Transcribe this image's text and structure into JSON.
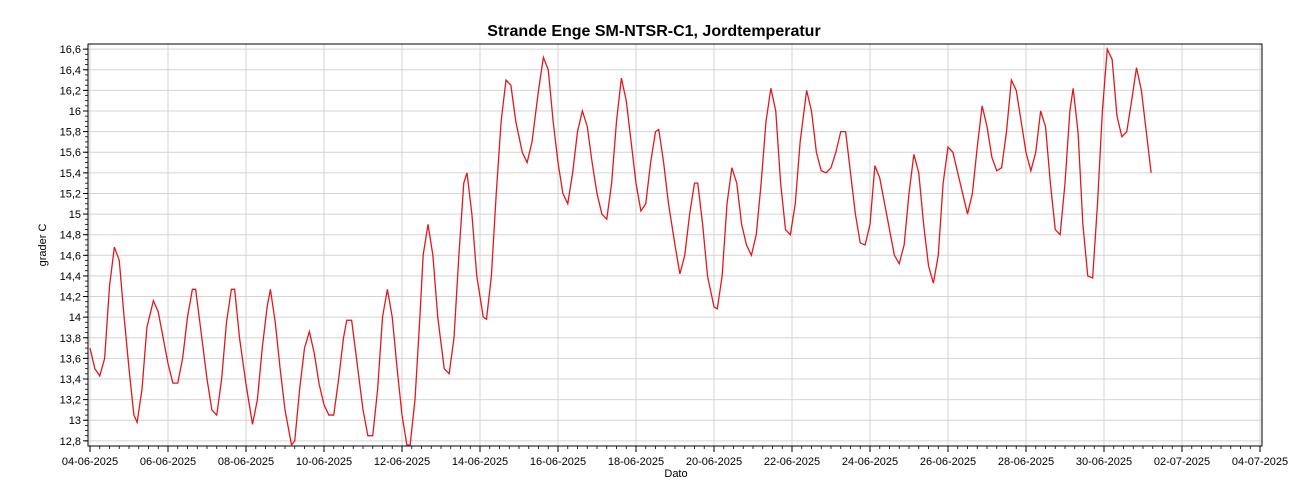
{
  "chart_data": {
    "type": "line",
    "title": "Strande Enge SM-NTSR-C1, Jordtemperatur",
    "xlabel": "Dato",
    "ylabel": "grader C",
    "x_tick_labels": [
      "04-06-2025",
      "06-06-2025",
      "08-06-2025",
      "10-06-2025",
      "12-06-2025",
      "14-06-2025",
      "16-06-2025",
      "18-06-2025",
      "20-06-2025",
      "22-06-2025",
      "24-06-2025",
      "26-06-2025",
      "28-06-2025",
      "30-06-2025",
      "02-07-2025",
      "04-07-2025"
    ],
    "y_tick_labels": [
      "12,8",
      "13",
      "13,2",
      "13,4",
      "13,6",
      "13,8",
      "14",
      "14,2",
      "14,4",
      "14,6",
      "14,8",
      "15",
      "15,2",
      "15,4",
      "15,6",
      "15,8",
      "16",
      "16,2",
      "16,4",
      "16,6"
    ],
    "xlim": [
      "2025-06-04",
      "2025-07-04"
    ],
    "ylim": [
      12.75,
      16.65
    ],
    "grid": true,
    "line_color": "#e0191e",
    "series": [
      {
        "points": [
          [
            "2025-06-04 00:00",
            13.7
          ],
          [
            "2025-06-04 03:00",
            13.5
          ],
          [
            "2025-06-04 06:00",
            13.43
          ],
          [
            "2025-06-04 09:00",
            13.6
          ],
          [
            "2025-06-04 12:00",
            14.3
          ],
          [
            "2025-06-04 15:00",
            14.68
          ],
          [
            "2025-06-04 18:00",
            14.55
          ],
          [
            "2025-06-04 21:00",
            14.0
          ],
          [
            "2025-06-05 00:00",
            13.5
          ],
          [
            "2025-06-05 03:00",
            13.05
          ],
          [
            "2025-06-05 05:00",
            12.98
          ],
          [
            "2025-06-05 08:00",
            13.3
          ],
          [
            "2025-06-05 11:00",
            13.9
          ],
          [
            "2025-06-05 15:00",
            14.16
          ],
          [
            "2025-06-05 18:00",
            14.05
          ],
          [
            "2025-06-05 21:00",
            13.8
          ],
          [
            "2025-06-06 00:00",
            13.55
          ],
          [
            "2025-06-06 03:00",
            13.36
          ],
          [
            "2025-06-06 06:00",
            13.36
          ],
          [
            "2025-06-06 09:00",
            13.6
          ],
          [
            "2025-06-06 12:00",
            14.0
          ],
          [
            "2025-06-06 15:00",
            14.27
          ],
          [
            "2025-06-06 17:00",
            14.27
          ],
          [
            "2025-06-06 20:00",
            13.9
          ],
          [
            "2025-06-07 00:00",
            13.4
          ],
          [
            "2025-06-07 03:00",
            13.1
          ],
          [
            "2025-06-07 06:00",
            13.05
          ],
          [
            "2025-06-07 09:00",
            13.4
          ],
          [
            "2025-06-07 12:00",
            13.95
          ],
          [
            "2025-06-07 15:00",
            14.27
          ],
          [
            "2025-06-07 17:00",
            14.27
          ],
          [
            "2025-06-07 20:00",
            13.8
          ],
          [
            "2025-06-08 00:00",
            13.35
          ],
          [
            "2025-06-08 04:00",
            12.96
          ],
          [
            "2025-06-08 07:00",
            13.2
          ],
          [
            "2025-06-08 10:00",
            13.7
          ],
          [
            "2025-06-08 13:00",
            14.1
          ],
          [
            "2025-06-08 15:00",
            14.27
          ],
          [
            "2025-06-08 18:00",
            13.95
          ],
          [
            "2025-06-08 21:00",
            13.5
          ],
          [
            "2025-06-09 00:00",
            13.1
          ],
          [
            "2025-06-09 04:00",
            12.76
          ],
          [
            "2025-06-09 06:00",
            12.8
          ],
          [
            "2025-06-09 09:00",
            13.3
          ],
          [
            "2025-06-09 12:00",
            13.7
          ],
          [
            "2025-06-09 15:00",
            13.86
          ],
          [
            "2025-06-09 18:00",
            13.65
          ],
          [
            "2025-06-09 21:00",
            13.35
          ],
          [
            "2025-06-10 00:00",
            13.15
          ],
          [
            "2025-06-10 03:00",
            13.05
          ],
          [
            "2025-06-10 06:00",
            13.05
          ],
          [
            "2025-06-10 09:00",
            13.4
          ],
          [
            "2025-06-10 12:00",
            13.8
          ],
          [
            "2025-06-10 14:00",
            13.97
          ],
          [
            "2025-06-10 17:00",
            13.97
          ],
          [
            "2025-06-10 20:00",
            13.6
          ],
          [
            "2025-06-11 00:00",
            13.1
          ],
          [
            "2025-06-11 03:00",
            12.85
          ],
          [
            "2025-06-11 06:00",
            12.85
          ],
          [
            "2025-06-11 09:00",
            13.3
          ],
          [
            "2025-06-11 12:00",
            14.0
          ],
          [
            "2025-06-11 15:00",
            14.27
          ],
          [
            "2025-06-11 18:00",
            14.0
          ],
          [
            "2025-06-11 21:00",
            13.5
          ],
          [
            "2025-06-12 00:00",
            13.05
          ],
          [
            "2025-06-12 03:00",
            12.76
          ],
          [
            "2025-06-12 05:00",
            12.76
          ],
          [
            "2025-06-12 08:00",
            13.2
          ],
          [
            "2025-06-12 11:00",
            14.0
          ],
          [
            "2025-06-12 13:00",
            14.6
          ],
          [
            "2025-06-12 16:00",
            14.9
          ],
          [
            "2025-06-12 19:00",
            14.6
          ],
          [
            "2025-06-12 22:00",
            14.0
          ],
          [
            "2025-06-13 02:00",
            13.5
          ],
          [
            "2025-06-13 05:00",
            13.45
          ],
          [
            "2025-06-13 08:00",
            13.8
          ],
          [
            "2025-06-13 11:00",
            14.6
          ],
          [
            "2025-06-13 14:00",
            15.3
          ],
          [
            "2025-06-13 16:00",
            15.4
          ],
          [
            "2025-06-13 19:00",
            15.0
          ],
          [
            "2025-06-13 22:00",
            14.4
          ],
          [
            "2025-06-14 02:00",
            14.0
          ],
          [
            "2025-06-14 04:00",
            13.98
          ],
          [
            "2025-06-14 07:00",
            14.4
          ],
          [
            "2025-06-14 10:00",
            15.2
          ],
          [
            "2025-06-14 13:00",
            15.9
          ],
          [
            "2025-06-14 16:00",
            16.3
          ],
          [
            "2025-06-14 19:00",
            16.25
          ],
          [
            "2025-06-14 22:00",
            15.9
          ],
          [
            "2025-06-15 02:00",
            15.6
          ],
          [
            "2025-06-15 05:00",
            15.5
          ],
          [
            "2025-06-15 08:00",
            15.7
          ],
          [
            "2025-06-15 12:00",
            16.2
          ],
          [
            "2025-06-15 15:00",
            16.52
          ],
          [
            "2025-06-15 18:00",
            16.4
          ],
          [
            "2025-06-15 21:00",
            15.9
          ],
          [
            "2025-06-16 00:00",
            15.5
          ],
          [
            "2025-06-16 03:00",
            15.2
          ],
          [
            "2025-06-16 06:00",
            15.1
          ],
          [
            "2025-06-16 09:00",
            15.4
          ],
          [
            "2025-06-16 12:00",
            15.8
          ],
          [
            "2025-06-16 15:00",
            16.0
          ],
          [
            "2025-06-16 18:00",
            15.85
          ],
          [
            "2025-06-16 21:00",
            15.5
          ],
          [
            "2025-06-17 00:00",
            15.2
          ],
          [
            "2025-06-17 03:00",
            15.0
          ],
          [
            "2025-06-17 06:00",
            14.95
          ],
          [
            "2025-06-17 09:00",
            15.3
          ],
          [
            "2025-06-17 12:00",
            15.9
          ],
          [
            "2025-06-17 15:00",
            16.32
          ],
          [
            "2025-06-17 18:00",
            16.1
          ],
          [
            "2025-06-17 21:00",
            15.7
          ],
          [
            "2025-06-18 00:00",
            15.3
          ],
          [
            "2025-06-18 03:00",
            15.03
          ],
          [
            "2025-06-18 06:00",
            15.1
          ],
          [
            "2025-06-18 09:00",
            15.5
          ],
          [
            "2025-06-18 12:00",
            15.8
          ],
          [
            "2025-06-18 14:00",
            15.82
          ],
          [
            "2025-06-18 17:00",
            15.5
          ],
          [
            "2025-06-18 20:00",
            15.1
          ],
          [
            "2025-06-19 00:00",
            14.7
          ],
          [
            "2025-06-19 03:00",
            14.42
          ],
          [
            "2025-06-19 06:00",
            14.6
          ],
          [
            "2025-06-19 09:00",
            15.0
          ],
          [
            "2025-06-19 12:00",
            15.3
          ],
          [
            "2025-06-19 14:00",
            15.3
          ],
          [
            "2025-06-19 17:00",
            14.9
          ],
          [
            "2025-06-19 20:00",
            14.4
          ],
          [
            "2025-06-20 00:00",
            14.1
          ],
          [
            "2025-06-20 02:00",
            14.08
          ],
          [
            "2025-06-20 05:00",
            14.4
          ],
          [
            "2025-06-20 08:00",
            15.1
          ],
          [
            "2025-06-20 11:00",
            15.45
          ],
          [
            "2025-06-20 14:00",
            15.3
          ],
          [
            "2025-06-20 17:00",
            14.9
          ],
          [
            "2025-06-20 20:00",
            14.7
          ],
          [
            "2025-06-20 23:00",
            14.6
          ],
          [
            "2025-06-21 02:00",
            14.8
          ],
          [
            "2025-06-21 05:00",
            15.3
          ],
          [
            "2025-06-21 08:00",
            15.9
          ],
          [
            "2025-06-21 11:00",
            16.22
          ],
          [
            "2025-06-21 14:00",
            16.0
          ],
          [
            "2025-06-21 17:00",
            15.3
          ],
          [
            "2025-06-21 20:00",
            14.85
          ],
          [
            "2025-06-21 23:00",
            14.8
          ],
          [
            "2025-06-22 02:00",
            15.1
          ],
          [
            "2025-06-22 05:00",
            15.7
          ],
          [
            "2025-06-22 09:00",
            16.2
          ],
          [
            "2025-06-22 12:00",
            16.0
          ],
          [
            "2025-06-22 15:00",
            15.6
          ],
          [
            "2025-06-22 18:00",
            15.42
          ],
          [
            "2025-06-22 21:00",
            15.4
          ],
          [
            "2025-06-23 00:00",
            15.45
          ],
          [
            "2025-06-23 03:00",
            15.6
          ],
          [
            "2025-06-23 06:00",
            15.8
          ],
          [
            "2025-06-23 09:00",
            15.8
          ],
          [
            "2025-06-23 12:00",
            15.4
          ],
          [
            "2025-06-23 15:00",
            15.0
          ],
          [
            "2025-06-23 18:00",
            14.72
          ],
          [
            "2025-06-23 21:00",
            14.7
          ],
          [
            "2025-06-24 00:00",
            14.9
          ],
          [
            "2025-06-24 03:00",
            15.47
          ],
          [
            "2025-06-24 06:00",
            15.35
          ],
          [
            "2025-06-24 09:00",
            15.1
          ],
          [
            "2025-06-24 12:00",
            14.85
          ],
          [
            "2025-06-24 15:00",
            14.6
          ],
          [
            "2025-06-24 18:00",
            14.52
          ],
          [
            "2025-06-24 21:00",
            14.7
          ],
          [
            "2025-06-25 00:00",
            15.2
          ],
          [
            "2025-06-25 03:00",
            15.58
          ],
          [
            "2025-06-25 06:00",
            15.4
          ],
          [
            "2025-06-25 09:00",
            14.9
          ],
          [
            "2025-06-25 12:00",
            14.5
          ],
          [
            "2025-06-25 15:00",
            14.33
          ],
          [
            "2025-06-25 18:00",
            14.6
          ],
          [
            "2025-06-25 21:00",
            15.3
          ],
          [
            "2025-06-26 00:00",
            15.65
          ],
          [
            "2025-06-26 03:00",
            15.6
          ],
          [
            "2025-06-26 06:00",
            15.4
          ],
          [
            "2025-06-26 09:00",
            15.2
          ],
          [
            "2025-06-26 12:00",
            15.0
          ],
          [
            "2025-06-26 15:00",
            15.2
          ],
          [
            "2025-06-26 18:00",
            15.65
          ],
          [
            "2025-06-26 21:00",
            16.05
          ],
          [
            "2025-06-27 00:00",
            15.85
          ],
          [
            "2025-06-27 03:00",
            15.55
          ],
          [
            "2025-06-27 06:00",
            15.42
          ],
          [
            "2025-06-27 09:00",
            15.45
          ],
          [
            "2025-06-27 12:00",
            15.8
          ],
          [
            "2025-06-27 15:00",
            16.3
          ],
          [
            "2025-06-27 18:00",
            16.2
          ],
          [
            "2025-06-27 21:00",
            15.9
          ],
          [
            "2025-06-28 00:00",
            15.6
          ],
          [
            "2025-06-28 03:00",
            15.42
          ],
          [
            "2025-06-28 06:00",
            15.6
          ],
          [
            "2025-06-28 09:00",
            16.0
          ],
          [
            "2025-06-28 12:00",
            15.85
          ],
          [
            "2025-06-28 15:00",
            15.3
          ],
          [
            "2025-06-28 18:00",
            14.85
          ],
          [
            "2025-06-28 21:00",
            14.8
          ],
          [
            "2025-06-29 00:00",
            15.3
          ],
          [
            "2025-06-29 03:00",
            16.0
          ],
          [
            "2025-06-29 05:00",
            16.22
          ],
          [
            "2025-06-29 08:00",
            15.8
          ],
          [
            "2025-06-29 11:00",
            14.9
          ],
          [
            "2025-06-29 14:00",
            14.4
          ],
          [
            "2025-06-29 17:00",
            14.38
          ],
          [
            "2025-06-29 20:00",
            15.1
          ],
          [
            "2025-06-29 23:00",
            16.0
          ],
          [
            "2025-06-30 02:00",
            16.6
          ],
          [
            "2025-06-30 05:00",
            16.5
          ],
          [
            "2025-06-30 08:00",
            15.95
          ],
          [
            "2025-06-30 11:00",
            15.75
          ],
          [
            "2025-06-30 14:00",
            15.8
          ],
          [
            "2025-06-30 17:00",
            16.1
          ],
          [
            "2025-06-30 20:00",
            16.42
          ],
          [
            "2025-06-30 23:00",
            16.2
          ],
          [
            "2025-07-01 02:00",
            15.8
          ],
          [
            "2025-07-01 05:00",
            15.4
          ]
        ]
      }
    ]
  }
}
